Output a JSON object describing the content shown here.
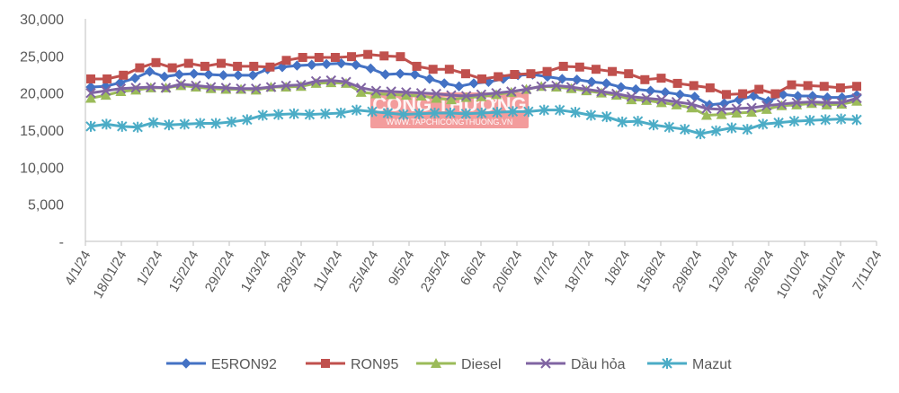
{
  "chart_data": {
    "type": "line",
    "title": "",
    "xlabel": "",
    "ylabel": "",
    "ylim": [
      0,
      30000
    ],
    "y_ticks": [
      "-",
      "5,000",
      "10,000",
      "15,000",
      "20,000",
      "25,000",
      "30,000"
    ],
    "y_tick_values": [
      0,
      5000,
      10000,
      15000,
      20000,
      25000,
      30000
    ],
    "x_tick_labels": [
      "4/1/24",
      "18/01/24",
      "1/2/24",
      "15/2/24",
      "29/2/24",
      "14/3/24",
      "28/3/24",
      "11/4/24",
      "25/4/24",
      "9/5/24",
      "23/5/24",
      "6/6/24",
      "20/6/24",
      "4/7/24",
      "18/7/24",
      "1/8/24",
      "15/8/24",
      "29/8/24",
      "12/9/24",
      "26/9/24",
      "10/10/24",
      "24/10/24",
      "7/11/24"
    ],
    "legend_position": "bottom",
    "grid": false,
    "watermark": {
      "title": "CÔNG THƯƠNG",
      "subtitle": "WWW.TAPCHICONGTHUONG.VN"
    },
    "series": [
      {
        "name": "E5RON92",
        "color": "#4472C4",
        "marker": "diamond",
        "values": [
          20800,
          20900,
          21400,
          22000,
          22900,
          22200,
          22500,
          22600,
          22500,
          22400,
          22400,
          22400,
          23200,
          23500,
          23700,
          23800,
          23900,
          24000,
          23800,
          23300,
          22500,
          22600,
          22500,
          21900,
          21300,
          20900,
          21300,
          21500,
          21900,
          22400,
          22500,
          22200,
          21900,
          21800,
          21500,
          21300,
          20800,
          20500,
          20300,
          20100,
          19800,
          19500,
          18400,
          18600,
          19100,
          19600,
          18900,
          19800,
          19600,
          19600,
          19400,
          19400,
          19700
        ]
      },
      {
        "name": "RON95",
        "color": "#C0504D",
        "marker": "square",
        "values": [
          21900,
          21900,
          22400,
          23400,
          24100,
          23400,
          24000,
          23600,
          24000,
          23600,
          23600,
          23500,
          24400,
          24800,
          24800,
          24800,
          24900,
          25200,
          25000,
          24900,
          23600,
          23200,
          23200,
          22600,
          21900,
          22200,
          22500,
          22600,
          22900,
          23600,
          23500,
          23200,
          22900,
          22600,
          21800,
          22000,
          21300,
          21000,
          20700,
          19800,
          19900,
          20500,
          19900,
          21100,
          21000,
          20900,
          20700,
          20900
        ]
      },
      {
        "name": "Diesel",
        "color": "#9BBB59",
        "marker": "triangle",
        "values": [
          19300,
          19700,
          20200,
          20400,
          20700,
          20700,
          21000,
          20800,
          20600,
          20500,
          20500,
          20400,
          20800,
          20800,
          20900,
          21300,
          21400,
          21300,
          20100,
          19900,
          19800,
          19700,
          19600,
          19300,
          19100,
          19400,
          19500,
          19800,
          20100,
          20500,
          20900,
          20800,
          20600,
          20300,
          20000,
          19700,
          19100,
          19000,
          18700,
          18400,
          18000,
          17000,
          17100,
          17300,
          17400,
          17800,
          18300,
          18400,
          18600,
          18400,
          18500,
          18900
        ]
      },
      {
        "name": "Dầu hỏa",
        "color": "#8064A2",
        "marker": "x",
        "values": [
          20000,
          20300,
          20600,
          20700,
          20800,
          20700,
          21200,
          21000,
          20800,
          20700,
          20600,
          20600,
          20800,
          21000,
          21100,
          21600,
          21700,
          21500,
          20700,
          20300,
          20200,
          20100,
          20000,
          19900,
          19700,
          19600,
          19800,
          20000,
          20200,
          20500,
          20900,
          21000,
          20800,
          20500,
          20200,
          19900,
          19500,
          19300,
          19100,
          18800,
          18500,
          17900,
          17800,
          17900,
          18000,
          18300,
          18500,
          18700,
          18800,
          18700,
          18700,
          19300
        ]
      },
      {
        "name": "Mazut",
        "color": "#4BACC6",
        "marker": "asterisk",
        "values": [
          15500,
          15800,
          15500,
          15400,
          16000,
          15700,
          15800,
          15900,
          15900,
          16100,
          16400,
          17000,
          17100,
          17200,
          17100,
          17200,
          17300,
          17700,
          17500,
          17300,
          17100,
          17200,
          17300,
          17300,
          17200,
          17300,
          17400,
          17500,
          17500,
          17700,
          17700,
          17400,
          17000,
          16800,
          16100,
          16200,
          15700,
          15400,
          15100,
          14500,
          14900,
          15300,
          15100,
          15800,
          16000,
          16200,
          16300,
          16400,
          16500,
          16400
        ]
      }
    ]
  }
}
